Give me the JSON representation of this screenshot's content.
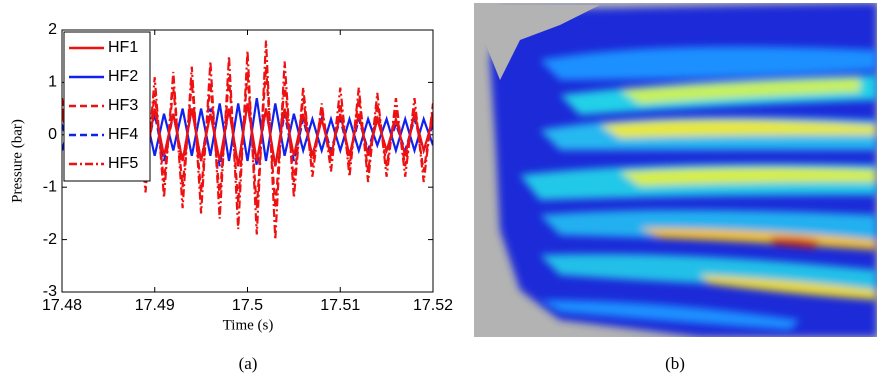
{
  "chart_data": {
    "type": "line",
    "xlabel": "Time (s)",
    "ylabel": "Pressure (bar)",
    "xlim": [
      17.48,
      17.52
    ],
    "xticks": [
      17.48,
      17.49,
      17.5,
      17.51,
      17.52
    ],
    "ylim": [
      -3,
      2
    ],
    "yticks": [
      -3,
      -2,
      -1,
      0,
      1,
      2
    ],
    "legend": "upper left",
    "x": [
      17.48,
      17.481,
      17.482,
      17.483,
      17.484,
      17.485,
      17.486,
      17.487,
      17.488,
      17.489,
      17.49,
      17.491,
      17.492,
      17.493,
      17.494,
      17.495,
      17.496,
      17.497,
      17.498,
      17.499,
      17.5,
      17.501,
      17.502,
      17.503,
      17.504,
      17.505,
      17.506,
      17.507,
      17.508,
      17.509,
      17.51,
      17.511,
      17.512,
      17.513,
      17.514,
      17.515,
      17.516,
      17.517,
      17.518,
      17.519,
      17.52
    ],
    "series": [
      {
        "name": "HF1",
        "color": "#ee1111",
        "dash": "solid",
        "values": [
          0.4,
          -0.3,
          0.3,
          -0.4,
          0.4,
          -0.4,
          0.3,
          -0.4,
          0.4,
          -0.5,
          0.5,
          -0.4,
          0.4,
          -0.5,
          0.5,
          -0.5,
          0.4,
          -0.5,
          0.5,
          -0.6,
          0.6,
          -0.5,
          0.5,
          -0.6,
          0.5,
          -0.4,
          0.4,
          -0.4,
          0.3,
          -0.4,
          0.4,
          -0.4,
          0.4,
          -0.4,
          0.3,
          -0.3,
          0.3,
          -0.4,
          0.4,
          -0.3,
          0.3
        ]
      },
      {
        "name": "HF2",
        "color": "#1122ee",
        "dash": "solid",
        "values": [
          -0.3,
          0.3,
          -0.2,
          0.3,
          -0.3,
          0.3,
          -0.3,
          0.4,
          -0.3,
          0.4,
          -0.4,
          0.4,
          -0.3,
          0.5,
          -0.4,
          0.5,
          -0.4,
          0.6,
          -0.5,
          0.6,
          -0.5,
          0.7,
          -0.5,
          0.6,
          -0.4,
          0.4,
          -0.3,
          0.3,
          -0.3,
          0.3,
          -0.3,
          0.3,
          -0.3,
          0.3,
          -0.2,
          0.3,
          -0.3,
          0.3,
          -0.3,
          0.3,
          -0.2
        ]
      },
      {
        "name": "HF3",
        "color": "#ee1111",
        "dash": "dashed",
        "values": [
          0.5,
          -0.5,
          0.4,
          -0.6,
          0.5,
          -0.6,
          0.6,
          -0.7,
          0.7,
          -0.8,
          0.8,
          -0.9,
          0.9,
          -1.0,
          1.0,
          -1.1,
          1.0,
          -1.2,
          1.1,
          -1.3,
          1.2,
          -1.4,
          1.3,
          -1.4,
          1.0,
          -0.9,
          0.7,
          -0.6,
          0.5,
          -0.5,
          0.6,
          -0.6,
          0.7,
          -0.7,
          0.6,
          -0.6,
          0.5,
          -0.6,
          0.5,
          -0.7,
          0.5
        ]
      },
      {
        "name": "HF4",
        "color": "#1122ee",
        "dash": "dashed",
        "values": [
          0.2,
          -0.4,
          0.3,
          -0.3,
          0.2,
          -0.3,
          0.3,
          -0.4,
          0.3,
          -0.4,
          0.4,
          -0.5,
          0.4,
          -0.5,
          0.5,
          -0.5,
          0.5,
          -0.6,
          0.5,
          -0.6,
          0.6,
          -0.6,
          0.5,
          -0.6,
          0.4,
          -0.5,
          0.3,
          -0.4,
          0.3,
          -0.3,
          0.3,
          -0.4,
          0.3,
          -0.3,
          0.3,
          -0.3,
          0.2,
          -0.3,
          0.3,
          -0.3,
          0.2
        ]
      },
      {
        "name": "HF5",
        "color": "#ee1111",
        "dash": "dashdot",
        "values": [
          0.7,
          -0.7,
          0.6,
          -0.8,
          0.7,
          -0.8,
          0.9,
          -0.9,
          1.0,
          -1.1,
          1.1,
          -1.2,
          1.2,
          -1.4,
          1.3,
          -1.5,
          1.4,
          -1.6,
          1.5,
          -1.8,
          1.6,
          -1.9,
          1.8,
          -2.0,
          1.4,
          -1.2,
          0.9,
          -0.8,
          0.6,
          -0.7,
          0.9,
          -0.8,
          0.9,
          -0.9,
          0.8,
          -0.8,
          0.7,
          -0.8,
          0.7,
          -0.9,
          0.6
        ]
      }
    ]
  },
  "panel_labels": [
    "(a)",
    "(b)"
  ]
}
